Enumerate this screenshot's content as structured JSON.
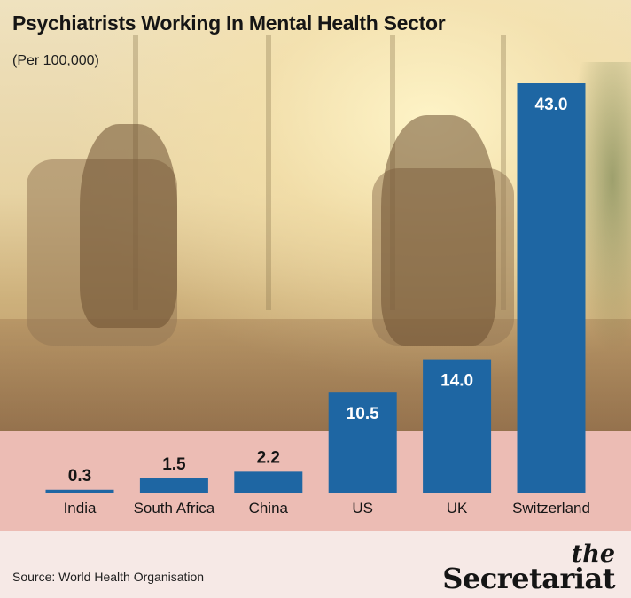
{
  "header": {
    "title": "Psychiatrists Working In Mental Health Sector",
    "subtitle": "(Per 100,000)"
  },
  "footer": {
    "source": "Source: World Health Organisation",
    "logo_the": "the",
    "logo_brand": "Secretariat"
  },
  "colors": {
    "bar": "#1e66a3",
    "band": "#ecbcb4",
    "footer_bg": "#f6e9e6",
    "text": "#151515"
  },
  "chart_data": {
    "type": "bar",
    "title": "Psychiatrists Working In Mental Health Sector",
    "subtitle": "(Per 100,000)",
    "categories": [
      "India",
      "South Africa",
      "China",
      "US",
      "UK",
      "Switzerland"
    ],
    "values": [
      0.3,
      1.5,
      2.2,
      10.5,
      14.0,
      43.0
    ],
    "value_labels": [
      "0.3",
      "1.5",
      "2.2",
      "10.5",
      "14.0",
      "43.0"
    ],
    "ylim": [
      0,
      43
    ],
    "grid": false,
    "legend": "none"
  }
}
